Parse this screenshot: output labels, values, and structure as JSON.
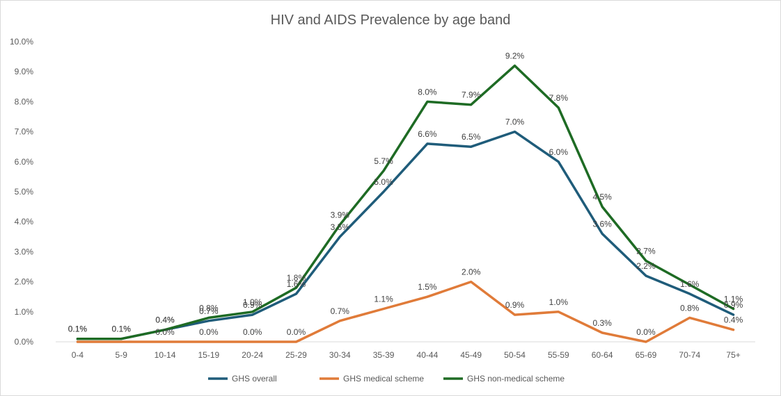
{
  "chart_data": {
    "type": "line",
    "title": "HIV and AIDS Prevalence by age band",
    "xlabel": "",
    "ylabel": "",
    "categories": [
      "0-4",
      "5-9",
      "10-14",
      "15-19",
      "20-24",
      "25-29",
      "30-34",
      "35-39",
      "40-44",
      "45-49",
      "50-54",
      "55-59",
      "60-64",
      "65-69",
      "70-74",
      "75+"
    ],
    "ylim": [
      0,
      10.0
    ],
    "yticks": [
      "0.0%",
      "1.0%",
      "2.0%",
      "3.0%",
      "4.0%",
      "5.0%",
      "6.0%",
      "7.0%",
      "8.0%",
      "9.0%",
      "10.0%"
    ],
    "grid": false,
    "legend": "bottom",
    "series": [
      {
        "name": "GHS overall",
        "color": "#1f5c7a",
        "values": [
          0.1,
          0.1,
          0.4,
          0.7,
          0.9,
          1.6,
          3.5,
          5.0,
          6.6,
          6.5,
          7.0,
          6.0,
          3.6,
          2.2,
          1.6,
          0.9
        ],
        "labels": [
          "0.1%",
          "0.1%",
          "0.4%",
          "0.7%",
          "0.9%",
          "1.6%",
          "3.5%",
          "5.0%",
          "6.6%",
          "6.5%",
          "7.0%",
          "6.0%",
          "3.6%",
          "2.2%",
          "1.6%",
          "0.9%"
        ]
      },
      {
        "name": "GHS medical scheme",
        "color": "#e07b39",
        "values": [
          0.0,
          0.0,
          0.0,
          0.0,
          0.0,
          0.0,
          0.7,
          1.1,
          1.5,
          2.0,
          0.9,
          1.0,
          0.3,
          0.0,
          0.8,
          0.4
        ],
        "labels": [
          "",
          "",
          "0.0%",
          "0.0%",
          "0.0%",
          "0.0%",
          "0.7%",
          "1.1%",
          "1.5%",
          "2.0%",
          "0.9%",
          "1.0%",
          "0.3%",
          "0.0%",
          "0.8%",
          "0.4%"
        ]
      },
      {
        "name": "GHS non-medical scheme",
        "color": "#1e6b24",
        "values": [
          0.1,
          0.1,
          0.4,
          0.8,
          1.0,
          1.8,
          3.9,
          5.7,
          8.0,
          7.9,
          9.2,
          7.8,
          4.5,
          2.7,
          1.9,
          1.1
        ],
        "labels": [
          "0.1%",
          "0.1%",
          "0.4%",
          "0.8%",
          "1.0%",
          "1.8%",
          "3.9%",
          "5.7%",
          "8.0%",
          "7.9%",
          "9.2%",
          "7.8%",
          "4.5%",
          "2.7%",
          "",
          "1.1%"
        ]
      }
    ]
  }
}
